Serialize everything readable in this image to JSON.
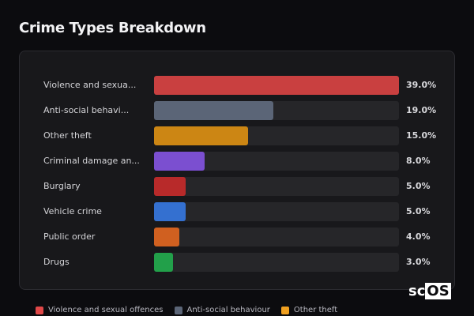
{
  "chart_data": {
    "type": "bar",
    "orientation": "horizontal",
    "title": "Crime Types Breakdown",
    "categories": [
      "Violence and sexua...",
      "Anti-social behavi...",
      "Other theft",
      "Criminal damage an...",
      "Burglary",
      "Vehicle crime",
      "Public order",
      "Drugs"
    ],
    "values": [
      39.0,
      19.0,
      15.0,
      8.0,
      5.0,
      5.0,
      4.0,
      3.0
    ],
    "value_labels": [
      "39.0%",
      "19.0%",
      "15.0%",
      "8.0%",
      "5.0%",
      "5.0%",
      "4.0%",
      "3.0%"
    ],
    "colors": [
      "#c94040",
      "#5b6577",
      "#cc8614",
      "#7b4fd0",
      "#b82a2a",
      "#3470d0",
      "#d06020",
      "#22a04a"
    ],
    "xlim": [
      0,
      39
    ],
    "legend": [
      {
        "label": "Violence and sexual offences",
        "color": "#e04848"
      },
      {
        "label": "Anti-social behaviour",
        "color": "#5b6577"
      },
      {
        "label": "Other theft",
        "color": "#f0a020"
      }
    ],
    "legend_position": "bottom"
  },
  "watermark": {
    "a": "sc",
    "b": "OS"
  }
}
